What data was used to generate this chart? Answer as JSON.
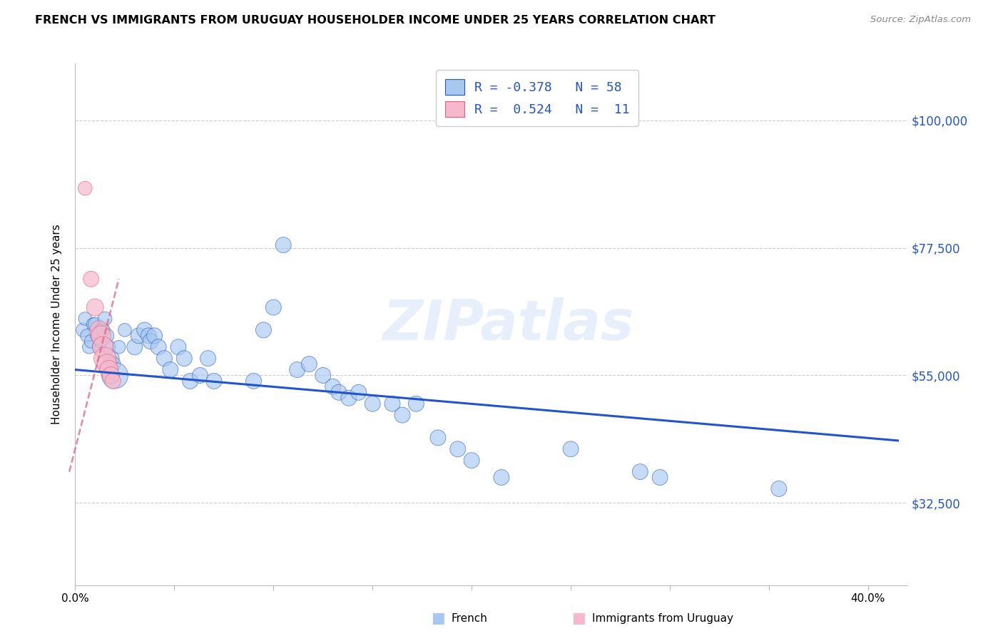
{
  "title": "FRENCH VS IMMIGRANTS FROM URUGUAY HOUSEHOLDER INCOME UNDER 25 YEARS CORRELATION CHART",
  "source": "Source: ZipAtlas.com",
  "ylabel": "Householder Income Under 25 years",
  "xlim": [
    0.0,
    0.42
  ],
  "ylim": [
    18000,
    110000
  ],
  "yticks": [
    32500,
    55000,
    77500,
    100000
  ],
  "ytick_labels": [
    "$32,500",
    "$55,000",
    "$77,500",
    "$100,000"
  ],
  "xticks": [
    0.0,
    0.05,
    0.1,
    0.15,
    0.2,
    0.25,
    0.3,
    0.35,
    0.4
  ],
  "xtick_labels": [
    "0.0%",
    "",
    "",
    "",
    "",
    "",
    "",
    "",
    "40.0%"
  ],
  "blue_color": "#a8c8f0",
  "pink_color": "#f5b8cc",
  "trend_blue": "#2255cc",
  "trend_pink": "#e06080",
  "french_label": "French",
  "uruguay_label": "Immigrants from Uruguay",
  "watermark": "ZIPatlas",
  "blue_x": [
    0.004,
    0.005,
    0.006,
    0.007,
    0.008,
    0.009,
    0.01,
    0.011,
    0.012,
    0.013,
    0.013,
    0.014,
    0.015,
    0.016,
    0.017,
    0.018,
    0.019,
    0.02,
    0.022,
    0.025,
    0.03,
    0.032,
    0.035,
    0.037,
    0.038,
    0.04,
    0.042,
    0.045,
    0.048,
    0.052,
    0.055,
    0.058,
    0.063,
    0.067,
    0.07,
    0.09,
    0.095,
    0.1,
    0.105,
    0.112,
    0.118,
    0.125,
    0.13,
    0.133,
    0.138,
    0.143,
    0.15,
    0.16,
    0.165,
    0.172,
    0.183,
    0.193,
    0.2,
    0.215,
    0.25,
    0.285,
    0.295,
    0.355
  ],
  "blue_y": [
    63000,
    65000,
    62000,
    60000,
    61000,
    64000,
    64000,
    62000,
    60000,
    63000,
    61000,
    63000,
    65000,
    62000,
    60000,
    58000,
    57000,
    55000,
    60000,
    63000,
    60000,
    62000,
    63000,
    62000,
    61000,
    62000,
    60000,
    58000,
    56000,
    60000,
    58000,
    54000,
    55000,
    58000,
    54000,
    54000,
    63000,
    67000,
    78000,
    56000,
    57000,
    55000,
    53000,
    52000,
    51000,
    52000,
    50000,
    50000,
    48000,
    50000,
    44000,
    42000,
    40000,
    37000,
    42000,
    38000,
    37000,
    35000
  ],
  "blue_s": [
    200,
    180,
    180,
    180,
    180,
    180,
    200,
    180,
    180,
    180,
    180,
    200,
    200,
    200,
    180,
    280,
    230,
    700,
    180,
    180,
    250,
    250,
    250,
    250,
    250,
    250,
    250,
    250,
    250,
    250,
    250,
    250,
    250,
    250,
    250,
    250,
    250,
    250,
    250,
    250,
    250,
    250,
    250,
    250,
    250,
    250,
    250,
    250,
    250,
    250,
    250,
    250,
    250,
    250,
    250,
    250,
    250,
    250
  ],
  "pink_x": [
    0.005,
    0.008,
    0.01,
    0.012,
    0.013,
    0.014,
    0.015,
    0.016,
    0.017,
    0.018,
    0.019
  ],
  "pink_y": [
    88000,
    72000,
    67000,
    63000,
    62000,
    60000,
    58000,
    57000,
    56000,
    55000,
    54000
  ],
  "pink_s": [
    200,
    250,
    300,
    350,
    400,
    450,
    500,
    400,
    350,
    300,
    250
  ],
  "blue_trend_x": [
    0.0,
    0.415
  ],
  "blue_trend_y": [
    56000,
    43500
  ],
  "pink_trend_x": [
    -0.003,
    0.022
  ],
  "pink_trend_y": [
    38000,
    72000
  ]
}
